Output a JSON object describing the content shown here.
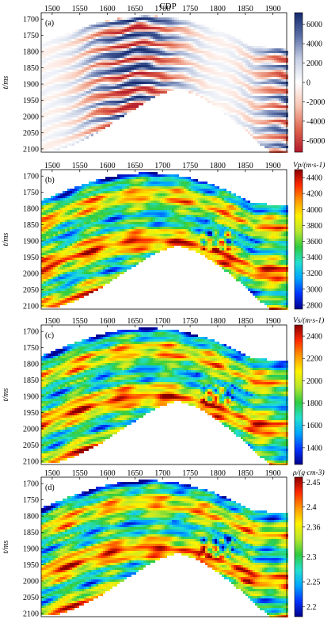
{
  "figure": {
    "top_label": "CDP"
  },
  "chart_data": [
    {
      "type": "heatmap",
      "panel_label": "(a)",
      "xlabel": "CDP",
      "ylabel": "t/ms",
      "xlim": [
        1480,
        1925
      ],
      "ylim": [
        2110,
        1680
      ],
      "xticks": [
        1500,
        1550,
        1600,
        1650,
        1700,
        1750,
        1800,
        1850,
        1900
      ],
      "yticks": [
        1700,
        1750,
        1800,
        1850,
        1900,
        1950,
        2000,
        2050,
        2100
      ],
      "colorbar": {
        "label": "",
        "range": [
          -7200,
          7200
        ],
        "ticks": [
          6000,
          4000,
          2000,
          0,
          -2000,
          -4000,
          -6000
        ],
        "colors": [
          "#b2182b",
          "#e0684f",
          "#f7c6b4",
          "#ffffff",
          "#c6cfe4",
          "#5a6fa6",
          "#152a6e"
        ]
      }
    },
    {
      "type": "heatmap",
      "panel_label": "(b)",
      "xlabel": "",
      "ylabel": "t/ms",
      "xlim": [
        1480,
        1925
      ],
      "ylim": [
        2110,
        1680
      ],
      "xticks": [
        1500,
        1550,
        1600,
        1650,
        1700,
        1750,
        1800,
        1850,
        1900
      ],
      "yticks": [
        1700,
        1750,
        1800,
        1850,
        1900,
        1950,
        2000,
        2050,
        2100
      ],
      "colorbar": {
        "label": "Vp/(m·s-1)",
        "range": [
          2750,
          4500
        ],
        "ticks": [
          4400,
          4200,
          4000,
          3800,
          3600,
          3400,
          3200,
          3000,
          2800
        ],
        "colors": [
          "#00008b",
          "#0033ff",
          "#00a6ff",
          "#23e0d0",
          "#2ecc40",
          "#b6e62e",
          "#fff200",
          "#ff9900",
          "#ff2a00",
          "#8b0000"
        ]
      }
    },
    {
      "type": "heatmap",
      "panel_label": "(c)",
      "xlabel": "",
      "ylabel": "t/ms",
      "xlim": [
        1480,
        1925
      ],
      "ylim": [
        2110,
        1680
      ],
      "xticks": [
        1500,
        1550,
        1600,
        1650,
        1700,
        1750,
        1800,
        1850,
        1900
      ],
      "yticks": [
        1700,
        1750,
        1800,
        1850,
        1900,
        1950,
        2000,
        2050,
        2100
      ],
      "colorbar": {
        "label": "Vs/(m·s-1)",
        "range": [
          1250,
          2500
        ],
        "ticks": [
          2400,
          2200,
          2000,
          1800,
          1600,
          1400
        ],
        "colors": [
          "#00008b",
          "#0033ff",
          "#00a6ff",
          "#23e0d0",
          "#2ecc40",
          "#b6e62e",
          "#fff200",
          "#ff9900",
          "#ff2a00",
          "#8b0000"
        ]
      }
    },
    {
      "type": "heatmap",
      "panel_label": "(d)",
      "xlabel": "",
      "ylabel": "t/ms",
      "xlim": [
        1480,
        1925
      ],
      "ylim": [
        2110,
        1680
      ],
      "xticks": [
        1500,
        1550,
        1600,
        1650,
        1700,
        1750,
        1800,
        1850,
        1900
      ],
      "yticks": [
        1700,
        1750,
        1800,
        1850,
        1900,
        1950,
        2000,
        2050,
        2100
      ],
      "colorbar": {
        "label": "ρ/(g·cm-3)",
        "range": [
          2.18,
          2.46
        ],
        "ticks": [
          2.45,
          2.4,
          2.36,
          2.3,
          2.25,
          2.2
        ],
        "colors": [
          "#00008b",
          "#0033ff",
          "#00a6ff",
          "#23e0d0",
          "#2ecc40",
          "#b6e62e",
          "#fff200",
          "#ff9900",
          "#ff2a00",
          "#8b0000"
        ]
      }
    }
  ]
}
